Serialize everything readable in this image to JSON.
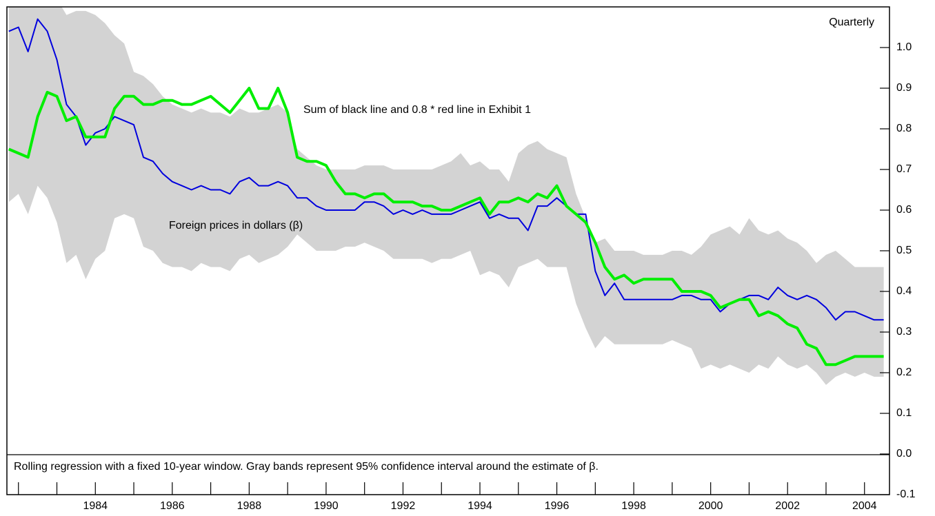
{
  "chart_data": {
    "type": "line",
    "annotation": "Quarterly",
    "note": "Rolling regression with a fixed 10-year window. Gray bands represent 95% confidence interval around the estimate of β.",
    "x": [
      1981.75,
      1982,
      1982.25,
      1982.5,
      1982.75,
      1983,
      1983.25,
      1983.5,
      1983.75,
      1984,
      1984.25,
      1984.5,
      1984.75,
      1985,
      1985.25,
      1985.5,
      1985.75,
      1986,
      1986.25,
      1986.5,
      1986.75,
      1987,
      1987.25,
      1987.5,
      1987.75,
      1988,
      1988.25,
      1988.5,
      1988.75,
      1989,
      1989.25,
      1989.5,
      1989.75,
      1990,
      1990.25,
      1990.5,
      1990.75,
      1991,
      1991.25,
      1991.5,
      1991.75,
      1992,
      1992.25,
      1992.5,
      1992.75,
      1993,
      1993.25,
      1993.5,
      1993.75,
      1994,
      1994.25,
      1994.5,
      1994.75,
      1995,
      1995.25,
      1995.5,
      1995.75,
      1996,
      1996.25,
      1996.5,
      1996.75,
      1997,
      1997.25,
      1997.5,
      1997.75,
      1998,
      1998.25,
      1998.5,
      1998.75,
      1999,
      1999.25,
      1999.5,
      1999.75,
      2000,
      2000.25,
      2000.5,
      2000.75,
      2001,
      2001.25,
      2001.5,
      2001.75,
      2002,
      2002.25,
      2002.5,
      2002.75,
      2003,
      2003.25,
      2003.5,
      2003.75,
      2004,
      2004.25,
      2004.5
    ],
    "series": [
      {
        "name": "Foreign prices in dollars (β)",
        "color": "#0000dd",
        "values": [
          1.04,
          1.05,
          0.99,
          1.07,
          1.04,
          0.97,
          0.86,
          0.83,
          0.76,
          0.79,
          0.8,
          0.83,
          0.82,
          0.81,
          0.73,
          0.72,
          0.69,
          0.67,
          0.66,
          0.65,
          0.66,
          0.65,
          0.65,
          0.64,
          0.67,
          0.68,
          0.66,
          0.66,
          0.67,
          0.66,
          0.63,
          0.63,
          0.61,
          0.6,
          0.6,
          0.6,
          0.6,
          0.62,
          0.62,
          0.61,
          0.59,
          0.6,
          0.59,
          0.6,
          0.59,
          0.59,
          0.59,
          0.6,
          0.61,
          0.62,
          0.58,
          0.59,
          0.58,
          0.58,
          0.55,
          0.61,
          0.61,
          0.63,
          0.61,
          0.59,
          0.59,
          0.45,
          0.39,
          0.42,
          0.38,
          0.38,
          0.38,
          0.38,
          0.38,
          0.38,
          0.39,
          0.39,
          0.38,
          0.38,
          0.35,
          0.37,
          0.38,
          0.39,
          0.39,
          0.38,
          0.41,
          0.39,
          0.38,
          0.39,
          0.38,
          0.36,
          0.33,
          0.35,
          0.35,
          0.34,
          0.33,
          0.33
        ]
      },
      {
        "name": "Sum of black line and 0.8 * red line in Exhibit 1",
        "color": "#00ee00",
        "values": [
          0.75,
          0.74,
          0.73,
          0.83,
          0.89,
          0.88,
          0.82,
          0.83,
          0.78,
          0.78,
          0.78,
          0.85,
          0.88,
          0.88,
          0.86,
          0.86,
          0.87,
          0.87,
          0.86,
          0.86,
          0.87,
          0.88,
          0.86,
          0.84,
          0.87,
          0.9,
          0.85,
          0.85,
          0.9,
          0.84,
          0.73,
          0.72,
          0.72,
          0.71,
          0.67,
          0.64,
          0.64,
          0.63,
          0.64,
          0.64,
          0.62,
          0.62,
          0.62,
          0.61,
          0.61,
          0.6,
          0.6,
          0.61,
          0.62,
          0.63,
          0.59,
          0.62,
          0.62,
          0.63,
          0.62,
          0.64,
          0.63,
          0.66,
          0.61,
          0.59,
          0.57,
          0.52,
          0.46,
          0.43,
          0.44,
          0.42,
          0.43,
          0.43,
          0.43,
          0.43,
          0.4,
          0.4,
          0.4,
          0.39,
          0.36,
          0.37,
          0.38,
          0.38,
          0.34,
          0.35,
          0.34,
          0.32,
          0.31,
          0.27,
          0.26,
          0.22,
          0.22,
          0.23,
          0.24,
          0.24,
          0.24,
          0.24
        ]
      }
    ],
    "band": {
      "color": "#d3d3d3",
      "upper": [
        1.12,
        1.12,
        1.12,
        1.12,
        1.12,
        1.12,
        1.08,
        1.09,
        1.09,
        1.08,
        1.06,
        1.03,
        1.01,
        0.94,
        0.93,
        0.91,
        0.88,
        0.86,
        0.85,
        0.84,
        0.85,
        0.84,
        0.84,
        0.83,
        0.85,
        0.84,
        0.84,
        0.85,
        0.86,
        0.84,
        0.75,
        0.73,
        0.71,
        0.7,
        0.7,
        0.7,
        0.7,
        0.71,
        0.71,
        0.71,
        0.7,
        0.7,
        0.7,
        0.7,
        0.7,
        0.71,
        0.72,
        0.74,
        0.71,
        0.72,
        0.7,
        0.7,
        0.67,
        0.74,
        0.76,
        0.77,
        0.75,
        0.74,
        0.73,
        0.64,
        0.58,
        0.52,
        0.53,
        0.5,
        0.5,
        0.5,
        0.49,
        0.49,
        0.49,
        0.5,
        0.5,
        0.49,
        0.51,
        0.54,
        0.55,
        0.56,
        0.54,
        0.58,
        0.55,
        0.54,
        0.55,
        0.53,
        0.52,
        0.5,
        0.47,
        0.49,
        0.5,
        0.48,
        0.46,
        0.46,
        0.46,
        0.46
      ],
      "lower": [
        0.62,
        0.64,
        0.59,
        0.66,
        0.63,
        0.57,
        0.47,
        0.49,
        0.43,
        0.48,
        0.5,
        0.58,
        0.59,
        0.58,
        0.51,
        0.5,
        0.47,
        0.46,
        0.46,
        0.45,
        0.47,
        0.46,
        0.46,
        0.45,
        0.48,
        0.49,
        0.47,
        0.48,
        0.49,
        0.51,
        0.54,
        0.52,
        0.5,
        0.5,
        0.5,
        0.51,
        0.51,
        0.52,
        0.51,
        0.5,
        0.48,
        0.48,
        0.48,
        0.48,
        0.47,
        0.48,
        0.48,
        0.49,
        0.5,
        0.44,
        0.45,
        0.44,
        0.41,
        0.46,
        0.47,
        0.48,
        0.46,
        0.46,
        0.46,
        0.37,
        0.31,
        0.26,
        0.29,
        0.27,
        0.27,
        0.27,
        0.27,
        0.27,
        0.27,
        0.28,
        0.27,
        0.26,
        0.21,
        0.22,
        0.21,
        0.22,
        0.21,
        0.2,
        0.22,
        0.21,
        0.24,
        0.22,
        0.21,
        0.22,
        0.2,
        0.17,
        0.19,
        0.2,
        0.19,
        0.2,
        0.19,
        0.19
      ]
    },
    "xlim": [
      1981.7,
      2004.65
    ],
    "xticks": [
      1984,
      1986,
      1988,
      1990,
      1992,
      1994,
      1996,
      1998,
      2000,
      2002,
      2004
    ],
    "xminor_ticks": [
      1982,
      1983,
      1985,
      1987,
      1989,
      1991,
      1993,
      1995,
      1997,
      1999,
      2001,
      2003
    ],
    "ylim": [
      -0.1,
      1.1
    ],
    "yticks": [
      -0.1,
      {
        "value": 0,
        "label": "0.0"
      },
      0.1,
      0.2,
      0.3,
      0.4,
      0.5,
      0.6,
      0.7,
      0.8,
      0.9,
      {
        "value": 1,
        "label": "1.0"
      }
    ],
    "y_axis_side": "right"
  }
}
